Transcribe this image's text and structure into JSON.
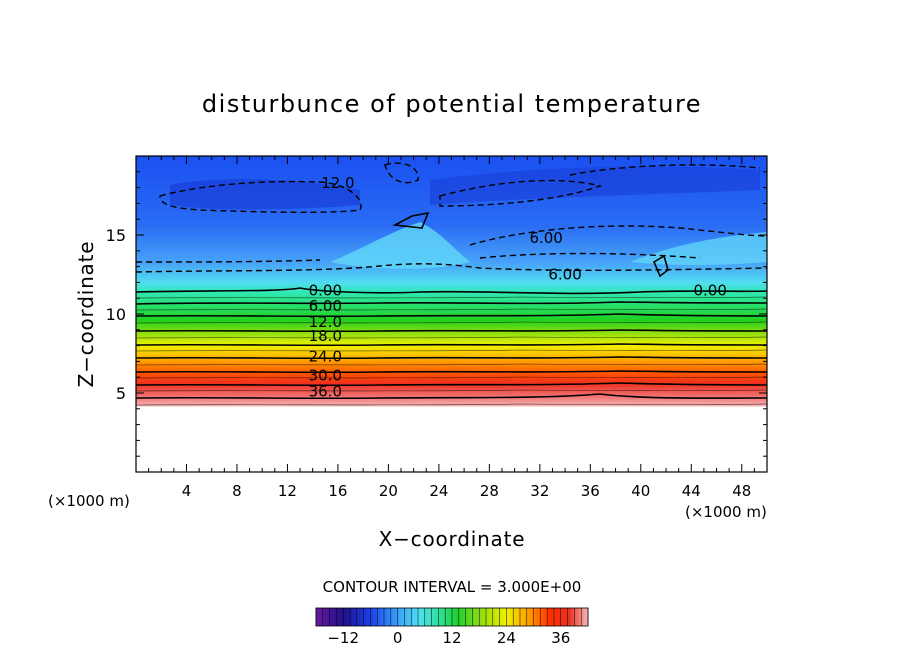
{
  "chart_data": {
    "type": "heatmap",
    "title": "disturbunce of potential temperature",
    "xlabel": "X−coordinate",
    "ylabel": "Z−coordinate",
    "x_unit_left": "(×1000 m)",
    "x_unit_right": "(×1000 m)",
    "xlim": [
      0,
      50
    ],
    "ylim": [
      0,
      20
    ],
    "x_ticks": [
      4,
      8,
      12,
      16,
      20,
      24,
      28,
      32,
      36,
      40,
      44,
      48
    ],
    "x_tick_labels": [
      "4",
      "8",
      "12",
      "16",
      "20",
      "24",
      "28",
      "32",
      "36",
      "40",
      "44",
      "48"
    ],
    "y_ticks": [
      5,
      10,
      15
    ],
    "y_tick_labels": [
      "5",
      "10",
      "15"
    ],
    "contour_interval_text": "CONTOUR INTERVAL = 3.000E+00",
    "colorbar": {
      "min": -18,
      "max": 42,
      "ticks": [
        -12,
        0,
        12,
        24,
        36
      ],
      "tick_labels": [
        "−12",
        "0",
        "12",
        "24",
        "36"
      ]
    },
    "contour_labels": [
      {
        "x": 15.0,
        "y": 11.5,
        "text": "0.00"
      },
      {
        "x": 15.0,
        "y": 10.5,
        "text": "6.00"
      },
      {
        "x": 15.0,
        "y": 9.5,
        "text": "12.0"
      },
      {
        "x": 15.0,
        "y": 8.6,
        "text": "18.0"
      },
      {
        "x": 15.0,
        "y": 7.3,
        "text": "24.0"
      },
      {
        "x": 15.0,
        "y": 6.1,
        "text": "30.0"
      },
      {
        "x": 15.0,
        "y": 5.1,
        "text": "36.0"
      },
      {
        "x": 16.0,
        "y": 18.3,
        "text": "12.0"
      },
      {
        "x": 32.5,
        "y": 14.8,
        "text": "6.00"
      },
      {
        "x": 34.0,
        "y": 12.5,
        "text": "6.00"
      },
      {
        "x": 45.5,
        "y": 11.5,
        "text": "0.00"
      }
    ]
  }
}
